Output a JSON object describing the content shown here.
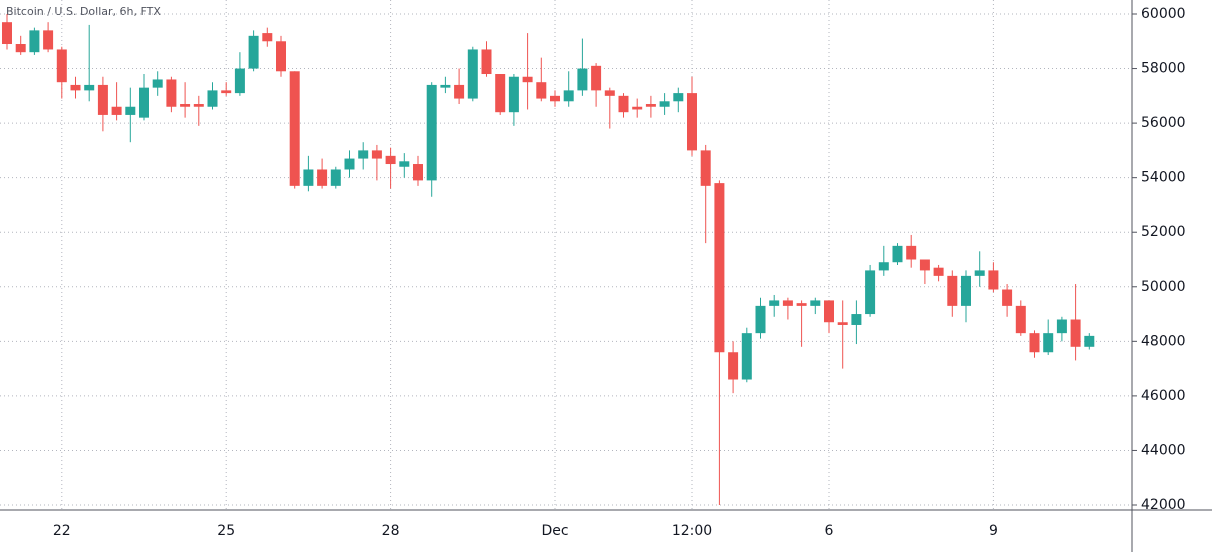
{
  "chart_data": {
    "type": "candlestick",
    "title": "Bitcoin / U.S. Dollar, 6h, FTX",
    "categories": [
      null,
      null,
      null,
      null,
      "22",
      null,
      null,
      null,
      null,
      null,
      null,
      null,
      null,
      null,
      null,
      null,
      "25",
      null,
      null,
      null,
      null,
      null,
      null,
      null,
      null,
      null,
      null,
      null,
      "28",
      null,
      null,
      null,
      null,
      null,
      null,
      null,
      null,
      null,
      null,
      null,
      "Dec",
      null,
      null,
      null,
      null,
      null,
      null,
      null,
      null,
      null,
      "12:00",
      null,
      null,
      null,
      null,
      null,
      null,
      null,
      null,
      null,
      "6",
      null,
      null,
      null,
      null,
      null,
      null,
      null,
      null,
      null,
      null,
      null,
      "9",
      null,
      null,
      null,
      null,
      null,
      null,
      null
    ],
    "open": [
      59700,
      58900,
      58600,
      59400,
      58700,
      57400,
      57200,
      57400,
      56600,
      56300,
      56200,
      57300,
      57600,
      56700,
      56700,
      56600,
      57200,
      57100,
      58000,
      59300,
      59000,
      57900,
      53700,
      54300,
      53700,
      54300,
      54700,
      55000,
      54800,
      54400,
      54500,
      53900,
      57300,
      57400,
      56900,
      58700,
      57800,
      56400,
      57700,
      57500,
      57000,
      56800,
      57200,
      58100,
      57200,
      57000,
      56600,
      56700,
      56600,
      56800,
      57100,
      55000,
      53800,
      47600,
      46600,
      48300,
      49300,
      49500,
      49400,
      49300,
      49500,
      48700,
      48600,
      49000,
      50600,
      50900,
      51500,
      51000,
      50700,
      50400,
      49300,
      50400,
      50600,
      49900,
      49300,
      48300,
      47600,
      48300,
      48800,
      47800
    ],
    "high": [
      60000,
      59200,
      59500,
      59700,
      58800,
      57700,
      59600,
      57700,
      57500,
      57300,
      57800,
      57900,
      57700,
      57500,
      57000,
      57500,
      57500,
      58600,
      59400,
      59500,
      59200,
      57900,
      54800,
      54700,
      54400,
      55000,
      55300,
      55200,
      55100,
      54900,
      54800,
      57500,
      57700,
      58000,
      58800,
      59000,
      57800,
      57800,
      59300,
      58400,
      57200,
      57900,
      59100,
      58200,
      57300,
      57100,
      56900,
      57000,
      57100,
      57300,
      57700,
      55200,
      53900,
      48000,
      48500,
      49600,
      49700,
      49600,
      49500,
      49600,
      49500,
      49500,
      49500,
      50800,
      51500,
      51600,
      51900,
      51000,
      50800,
      50600,
      50600,
      51300,
      50900,
      50100,
      49500,
      48400,
      48800,
      48900,
      50100,
      48300
    ],
    "low": [
      58700,
      58500,
      58500,
      58600,
      56900,
      56900,
      56800,
      55700,
      56100,
      55300,
      56100,
      57000,
      56400,
      56200,
      55900,
      56500,
      57000,
      57000,
      57900,
      58800,
      57700,
      53600,
      53500,
      53600,
      53600,
      54000,
      54300,
      53900,
      53600,
      54000,
      53700,
      53300,
      57100,
      56700,
      56800,
      57700,
      56300,
      55900,
      56500,
      56800,
      56600,
      56600,
      57000,
      56600,
      55800,
      56200,
      56200,
      56200,
      56300,
      56400,
      54800,
      51600,
      42000,
      46100,
      46500,
      48100,
      48900,
      48800,
      47800,
      49000,
      48300,
      47000,
      47900,
      48900,
      50400,
      50800,
      50700,
      50100,
      50200,
      48900,
      48700,
      50000,
      49800,
      48900,
      48200,
      47400,
      47500,
      48000,
      47300,
      47700
    ],
    "close": [
      58900,
      58600,
      59400,
      58700,
      57500,
      57200,
      57400,
      56300,
      56300,
      56600,
      57300,
      57600,
      56600,
      56600,
      56600,
      57200,
      57100,
      58000,
      59200,
      59000,
      57900,
      53700,
      54300,
      53700,
      54300,
      54700,
      55000,
      54700,
      54500,
      54600,
      53900,
      57400,
      57400,
      56900,
      58700,
      57800,
      56400,
      57700,
      57500,
      56900,
      56800,
      57200,
      58000,
      57200,
      57000,
      56400,
      56500,
      56600,
      56800,
      57100,
      55000,
      53700,
      47600,
      46600,
      48300,
      49300,
      49500,
      49300,
      49300,
      49500,
      48700,
      48600,
      49000,
      50600,
      50900,
      51500,
      51000,
      50600,
      50400,
      49300,
      50400,
      50600,
      49900,
      49300,
      48300,
      47600,
      48300,
      48800,
      47800,
      48200
    ],
    "up_color": "#26a69a",
    "down_color": "#ef5350",
    "ylim": [
      42000,
      60000
    ],
    "yticks": [
      42000,
      44000,
      46000,
      48000,
      50000,
      52000,
      54000,
      56000,
      58000,
      60000
    ],
    "grid": true
  }
}
